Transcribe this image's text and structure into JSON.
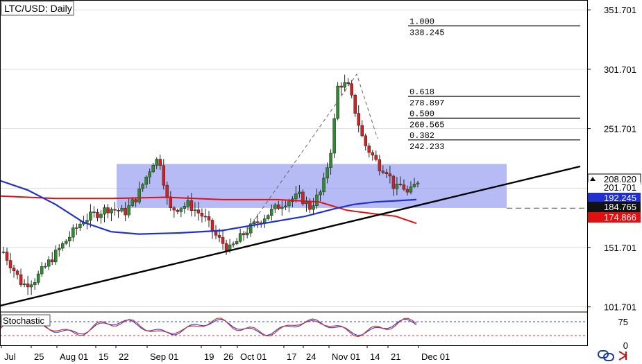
{
  "title": "LTC/USD: Daily",
  "indicator_label": "Stochastic",
  "colors": {
    "up": "#2e8b2e",
    "down": "#d62020",
    "ma_blue": "#1f2fd0",
    "ma_red": "#e01010",
    "zone": "#8f96f0",
    "trendline": "#000000",
    "grid": "#c8c8c8"
  },
  "chart_data": {
    "type": "candlestick",
    "symbol": "LTC/USD",
    "timeframe": "Daily",
    "ylim": [
      98,
      360
    ],
    "y_ticks": [
      351.701,
      301.701,
      251.701,
      201.701,
      151.701,
      101.701
    ],
    "x_ticks": [
      "Jul",
      "25",
      "Aug 01",
      "15",
      "22",
      "Sep 01",
      "19",
      "26",
      "Oct 01",
      "17",
      "24",
      "Nov 01",
      "14",
      "21",
      "Dec 01"
    ],
    "price_tags": [
      {
        "value": 208.02,
        "label": "208.020",
        "style": "current"
      },
      {
        "value": 201.701,
        "label": "201.701",
        "style": "grid"
      },
      {
        "value": 192.245,
        "label": "192.245",
        "style": "blue"
      },
      {
        "value": 184.765,
        "label": "184.765",
        "style": "dark"
      },
      {
        "value": 174.866,
        "label": "174.866",
        "style": "red"
      }
    ],
    "fibonacci": [
      {
        "ratio": "1.000",
        "price": "338.245",
        "value": 338.245
      },
      {
        "ratio": "0.618",
        "price": "278.897",
        "value": 278.897
      },
      {
        "ratio": "0.500",
        "price": "260.565",
        "value": 260.565
      },
      {
        "ratio": "0.382",
        "price": "242.233",
        "value": 242.233
      }
    ],
    "zone": {
      "from": 185,
      "to": 222
    },
    "support_level": 184.765,
    "stochastic": {
      "ylim": [
        -10,
        110
      ],
      "levels": [
        75,
        25
      ],
      "tick_labels": [
        "75",
        "0"
      ]
    }
  }
}
